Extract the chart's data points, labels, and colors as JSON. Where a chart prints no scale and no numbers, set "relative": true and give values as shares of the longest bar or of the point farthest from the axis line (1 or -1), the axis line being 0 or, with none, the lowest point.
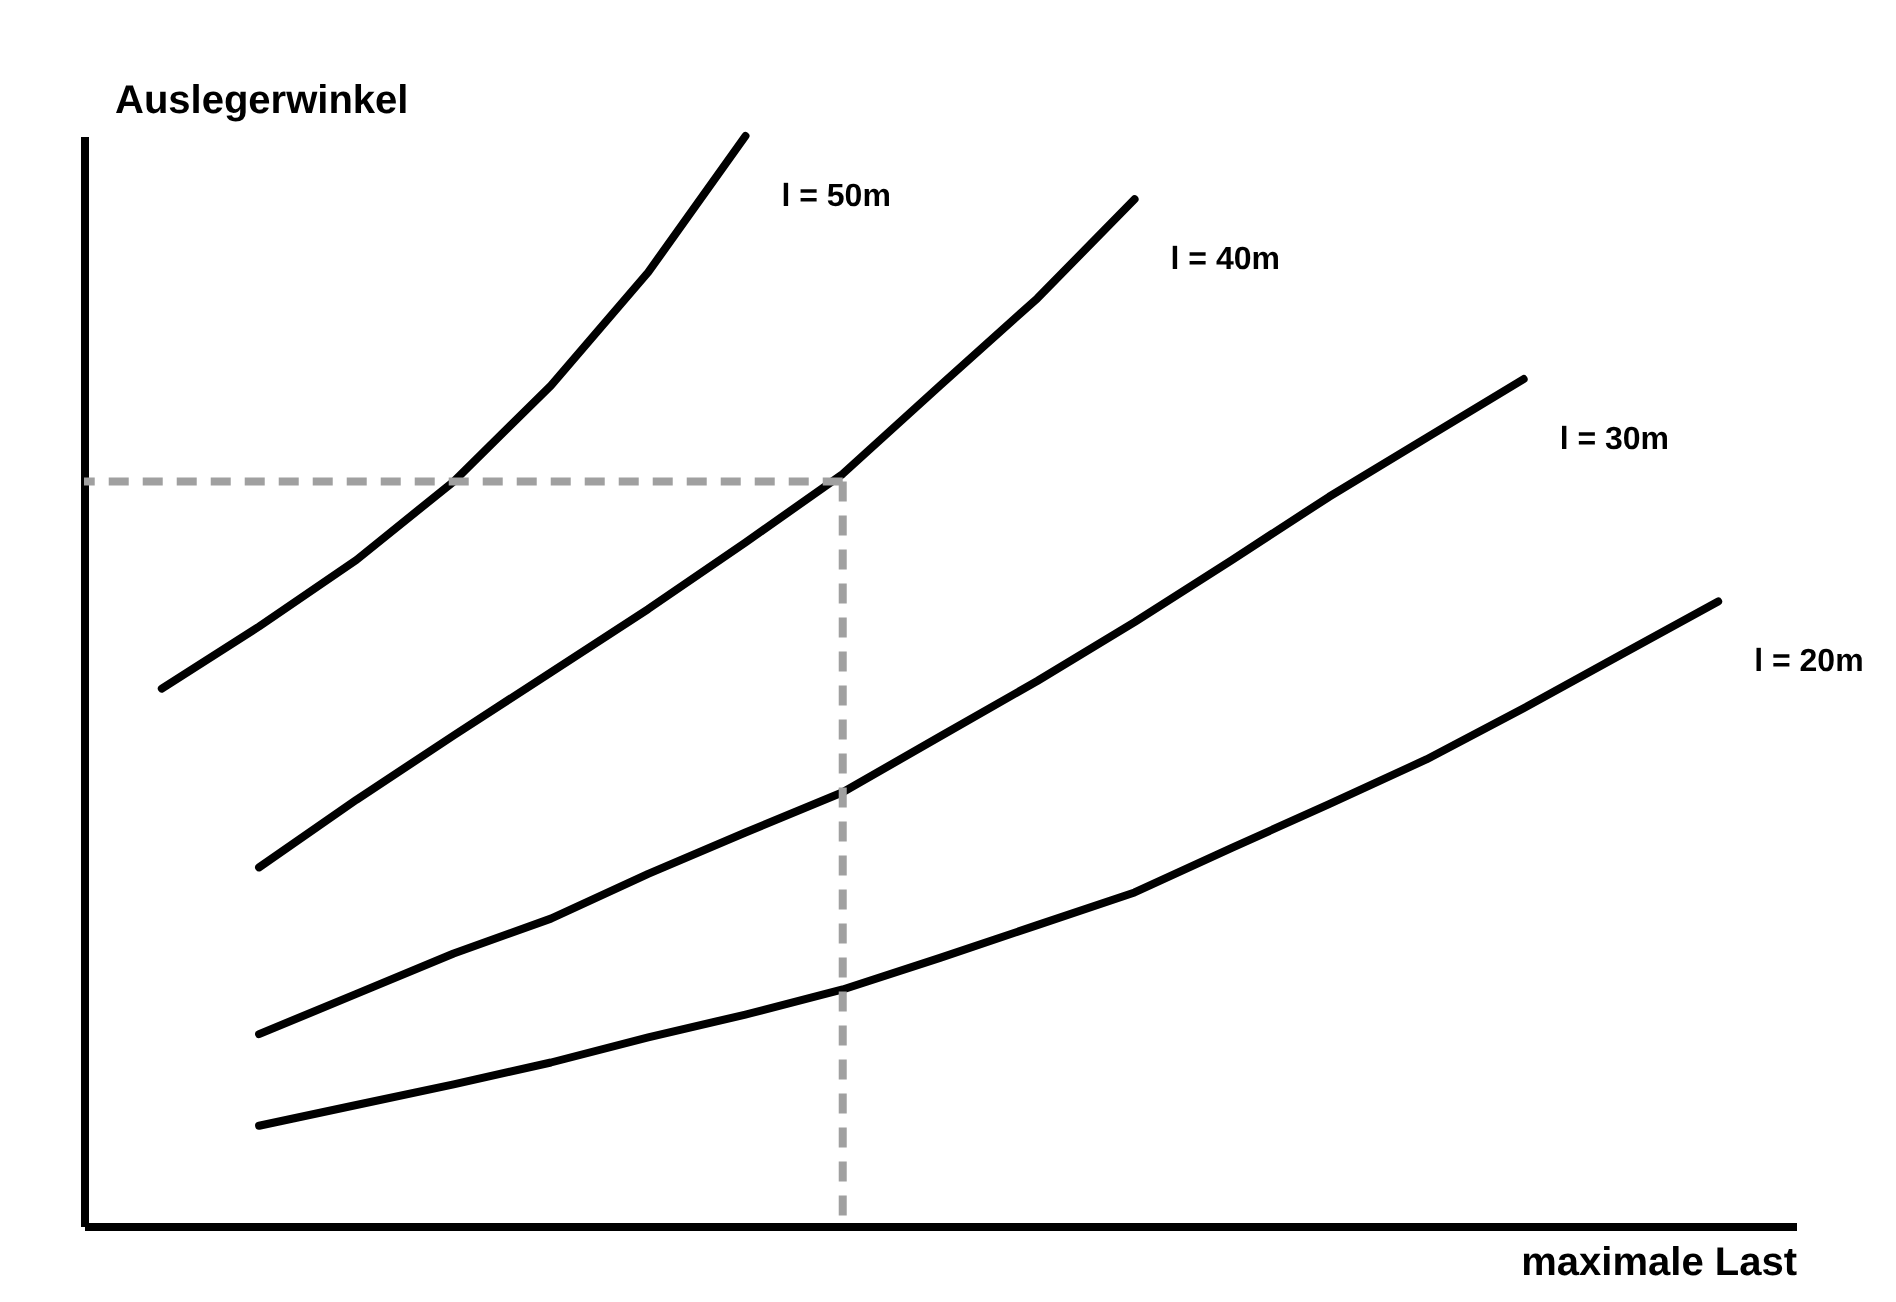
{
  "chart_data": {
    "type": "line",
    "relative": true,
    "xlabel": "maximale Last",
    "ylabel": "Auslegerwinkel",
    "categories": [
      null,
      null,
      null,
      null,
      null,
      null,
      null,
      null,
      null,
      null,
      null,
      null,
      null,
      null,
      null,
      null,
      null
    ],
    "tick_labels": false,
    "grid": false,
    "legend": false,
    "marker": "none",
    "line_style": "solid",
    "series": [
      {
        "name": "l = 50m",
        "color": "#000000",
        "values": [
          0.493,
          0.55,
          0.611,
          0.683,
          0.771,
          0.875,
          1.0,
          null,
          null,
          null,
          null,
          null,
          null,
          null,
          null,
          null,
          null
        ]
      },
      {
        "name": "l = 40m",
        "color": "#000000",
        "values": [
          null,
          0.329,
          0.391,
          0.45,
          0.508,
          0.566,
          0.627,
          0.69,
          0.771,
          0.851,
          0.942,
          null,
          null,
          null,
          null,
          null,
          null
        ]
      },
      {
        "name": "l = 30m",
        "color": "#000000",
        "values": [
          null,
          0.176,
          0.213,
          0.25,
          0.282,
          0.323,
          0.361,
          0.398,
          0.449,
          0.5,
          0.554,
          0.611,
          0.669,
          0.723,
          0.777,
          null,
          null
        ]
      },
      {
        "name": "l = 20m",
        "color": "#000000",
        "values": [
          null,
          0.092,
          0.111,
          0.13,
          0.15,
          0.173,
          0.194,
          0.217,
          0.246,
          0.276,
          0.306,
          0.347,
          0.387,
          0.428,
          0.475,
          0.524,
          0.573
        ]
      }
    ],
    "ref_lines": [
      {
        "axis": "y",
        "value": 0.683,
        "color": "#a0a0a0",
        "line_style": "dashed"
      }
    ]
  }
}
